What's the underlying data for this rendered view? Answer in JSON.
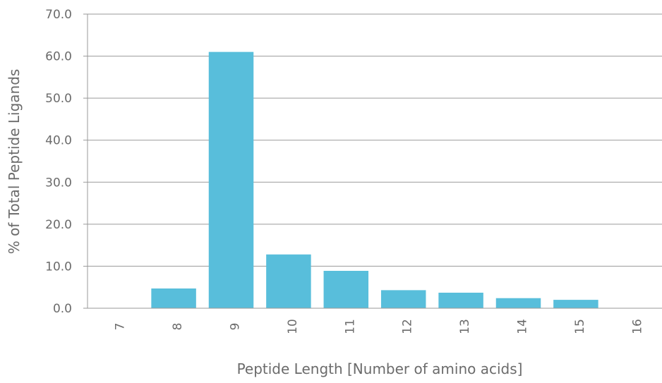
{
  "chart_data": {
    "type": "bar",
    "title": "",
    "xlabel": "Peptide Length [Number of amino acids]",
    "ylabel": "% of Total Peptide Ligands",
    "categories": [
      "7",
      "8",
      "9",
      "10",
      "11",
      "12",
      "13",
      "14",
      "15",
      "16"
    ],
    "values": [
      0.0,
      4.7,
      61.0,
      12.8,
      8.9,
      4.3,
      3.7,
      2.4,
      2.0,
      0.0
    ],
    "ylim": [
      0,
      70
    ],
    "yticks": [
      "0.0",
      "10.0",
      "20.0",
      "30.0",
      "40.0",
      "50.0",
      "60.0",
      "70.0"
    ],
    "grid": true,
    "legend": "none",
    "colors": {
      "bar": "#58bedb",
      "grid": "#9a9a9a",
      "text": "#6b6b6b"
    }
  }
}
